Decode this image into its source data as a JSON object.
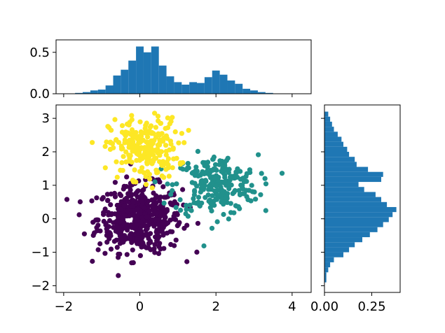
{
  "chart_data": [
    {
      "panel": "scatter",
      "type": "scatter",
      "xlim": [
        -2.2,
        4.5
      ],
      "ylim": [
        -2.2,
        3.4
      ],
      "x_ticks": [
        -2,
        0,
        2,
        4
      ],
      "x_tick_labels": [
        "−2",
        "0",
        "2",
        "4"
      ],
      "y_ticks": [
        -2,
        -1,
        0,
        1,
        2,
        3
      ],
      "y_tick_labels": [
        "−2",
        "−1",
        "0",
        "1",
        "2",
        "3"
      ],
      "grid": false,
      "series": [
        {
          "color": "#440154",
          "center": [
            0,
            0
          ],
          "spread": [
            0.55,
            0.5
          ],
          "count": 500
        },
        {
          "color": "#21918c",
          "center": [
            2,
            1
          ],
          "spread": [
            0.55,
            0.45
          ],
          "count": 250
        },
        {
          "color": "#fde725",
          "center": [
            0.1,
            2.1
          ],
          "spread": [
            0.45,
            0.45
          ],
          "count": 250
        }
      ]
    },
    {
      "panel": "top-histogram",
      "type": "bar",
      "xlim": [
        -2.2,
        4.5
      ],
      "ylim": [
        0,
        0.65
      ],
      "y_ticks": [
        0,
        0.5
      ],
      "y_tick_labels": [
        "0.0",
        "0.5"
      ],
      "bin_edges": [
        -1.7,
        -1.5,
        -1.3,
        -1.1,
        -0.9,
        -0.7,
        -0.5,
        -0.3,
        -0.1,
        0.1,
        0.3,
        0.5,
        0.7,
        0.9,
        1.1,
        1.3,
        1.5,
        1.7,
        1.9,
        2.1,
        2.3,
        2.5,
        2.7,
        2.9,
        3.1,
        3.3,
        3.5
      ],
      "values": [
        0.01,
        0.02,
        0.04,
        0.05,
        0.1,
        0.22,
        0.29,
        0.4,
        0.57,
        0.5,
        0.57,
        0.34,
        0.21,
        0.14,
        0.11,
        0.14,
        0.13,
        0.2,
        0.28,
        0.23,
        0.16,
        0.12,
        0.06,
        0.04,
        0.02,
        0.01
      ],
      "color": "#1f77b4"
    },
    {
      "panel": "right-histogram",
      "type": "bar",
      "orientation": "horizontal",
      "xlim": [
        0,
        0.4
      ],
      "ylim": [
        -2.2,
        3.4
      ],
      "x_ticks": [
        0,
        0.25
      ],
      "x_tick_labels": [
        "0.00",
        "0.25"
      ],
      "bin_edges": [
        -1.9,
        -1.75,
        -1.6,
        -1.45,
        -1.3,
        -1.15,
        -1.0,
        -0.85,
        -0.7,
        -0.55,
        -0.4,
        -0.25,
        -0.1,
        0.05,
        0.2,
        0.35,
        0.5,
        0.65,
        0.8,
        0.95,
        1.1,
        1.25,
        1.4,
        1.55,
        1.7,
        1.85,
        2.0,
        2.15,
        2.3,
        2.45,
        2.6,
        2.75,
        2.9,
        3.05,
        3.2
      ],
      "values": [
        0.01,
        0.01,
        0.02,
        0.03,
        0.05,
        0.1,
        0.13,
        0.16,
        0.2,
        0.24,
        0.28,
        0.31,
        0.34,
        0.36,
        0.38,
        0.33,
        0.3,
        0.27,
        0.21,
        0.18,
        0.3,
        0.31,
        0.23,
        0.17,
        0.16,
        0.13,
        0.12,
        0.1,
        0.09,
        0.07,
        0.05,
        0.04,
        0.03,
        0.02
      ],
      "color": "#1f77b4"
    }
  ]
}
